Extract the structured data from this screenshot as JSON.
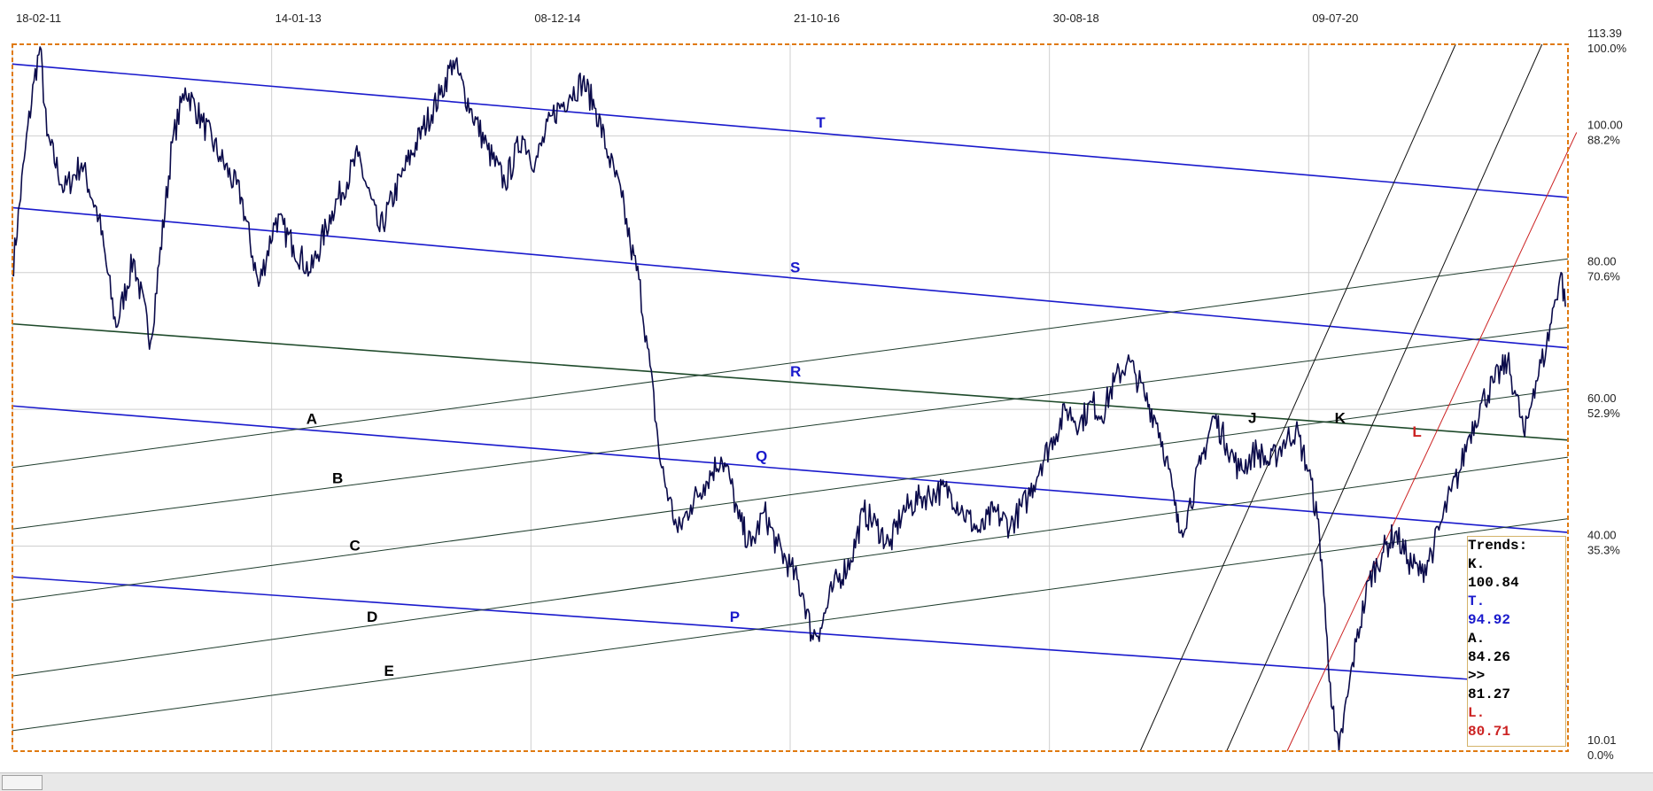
{
  "chart_data": {
    "type": "line",
    "x_ticks": [
      "18-02-11",
      "14-01-13",
      "08-12-14",
      "21-10-16",
      "30-08-18",
      "09-07-20"
    ],
    "y_labels": [
      {
        "value": "113.39",
        "pct": "100.0%"
      },
      {
        "value": "100.00",
        "pct": "88.2%"
      },
      {
        "value": "80.00",
        "pct": "70.6%"
      },
      {
        "value": "60.00",
        "pct": "52.9%"
      },
      {
        "value": "40.00",
        "pct": "35.3%"
      },
      {
        "value": "10.01",
        "pct": "0.0%"
      }
    ],
    "ylim": [
      10.01,
      113.39
    ],
    "price_series": [
      [
        0.0,
        80
      ],
      [
        0.15,
        98
      ],
      [
        0.25,
        108
      ],
      [
        0.32,
        113
      ],
      [
        0.4,
        100
      ],
      [
        0.6,
        92
      ],
      [
        0.8,
        96
      ],
      [
        1.0,
        88
      ],
      [
        1.2,
        72
      ],
      [
        1.4,
        82
      ],
      [
        1.6,
        70
      ],
      [
        1.85,
        99
      ],
      [
        2.0,
        107
      ],
      [
        2.2,
        102
      ],
      [
        2.4,
        97
      ],
      [
        2.65,
        91
      ],
      [
        2.85,
        78
      ],
      [
        3.05,
        88
      ],
      [
        3.25,
        84
      ],
      [
        3.45,
        80
      ],
      [
        3.7,
        89
      ],
      [
        4.0,
        97
      ],
      [
        4.25,
        86
      ],
      [
        4.5,
        94
      ],
      [
        4.75,
        101
      ],
      [
        4.95,
        106
      ],
      [
        5.1,
        111
      ],
      [
        5.3,
        104
      ],
      [
        5.5,
        98
      ],
      [
        5.7,
        93
      ],
      [
        5.9,
        100
      ],
      [
        6.05,
        96
      ],
      [
        6.25,
        103
      ],
      [
        6.45,
        106
      ],
      [
        6.6,
        108
      ],
      [
        6.75,
        104
      ],
      [
        6.9,
        97
      ],
      [
        7.05,
        91
      ],
      [
        7.15,
        84
      ],
      [
        7.25,
        79
      ],
      [
        7.35,
        69
      ],
      [
        7.45,
        58
      ],
      [
        7.5,
        52
      ],
      [
        7.6,
        47
      ],
      [
        7.7,
        42
      ],
      [
        7.85,
        46
      ],
      [
        8.0,
        49
      ],
      [
        8.2,
        53
      ],
      [
        8.3,
        50
      ],
      [
        8.4,
        44
      ],
      [
        8.55,
        40
      ],
      [
        8.7,
        45
      ],
      [
        8.85,
        40
      ],
      [
        9.0,
        37
      ],
      [
        9.15,
        33
      ],
      [
        9.25,
        27
      ],
      [
        9.35,
        28
      ],
      [
        9.5,
        34
      ],
      [
        9.7,
        38
      ],
      [
        9.85,
        45
      ],
      [
        10.0,
        43
      ],
      [
        10.15,
        40
      ],
      [
        10.3,
        45
      ],
      [
        10.5,
        47
      ],
      [
        10.7,
        48
      ],
      [
        10.85,
        48
      ],
      [
        11.0,
        45
      ],
      [
        11.2,
        42
      ],
      [
        11.35,
        45
      ],
      [
        11.55,
        43
      ],
      [
        11.75,
        47
      ],
      [
        11.9,
        52
      ],
      [
        12.05,
        56
      ],
      [
        12.2,
        60
      ],
      [
        12.35,
        58
      ],
      [
        12.5,
        61
      ],
      [
        12.6,
        59
      ],
      [
        12.75,
        64
      ],
      [
        12.9,
        67
      ],
      [
        13.0,
        65
      ],
      [
        13.1,
        62
      ],
      [
        13.25,
        58
      ],
      [
        13.35,
        53
      ],
      [
        13.45,
        46
      ],
      [
        13.5,
        42
      ],
      [
        13.6,
        45
      ],
      [
        13.75,
        52
      ],
      [
        13.9,
        59
      ],
      [
        14.05,
        55
      ],
      [
        14.2,
        51
      ],
      [
        14.4,
        54
      ],
      [
        14.55,
        52
      ],
      [
        14.7,
        55
      ],
      [
        14.85,
        57
      ],
      [
        15.0,
        51
      ],
      [
        15.1,
        44
      ],
      [
        15.15,
        38
      ],
      [
        15.2,
        28
      ],
      [
        15.25,
        20
      ],
      [
        15.3,
        13
      ],
      [
        15.35,
        10.01
      ],
      [
        15.45,
        18
      ],
      [
        15.55,
        26
      ],
      [
        15.7,
        35
      ],
      [
        15.85,
        39
      ],
      [
        16.0,
        42
      ],
      [
        16.15,
        38
      ],
      [
        16.3,
        36
      ],
      [
        16.45,
        40
      ],
      [
        16.55,
        44
      ],
      [
        16.65,
        48
      ],
      [
        16.75,
        51
      ],
      [
        16.85,
        56
      ],
      [
        17.0,
        61
      ],
      [
        17.15,
        64
      ],
      [
        17.3,
        67
      ],
      [
        17.4,
        62
      ],
      [
        17.5,
        56
      ],
      [
        17.6,
        63
      ],
      [
        17.75,
        69
      ],
      [
        17.85,
        76
      ],
      [
        17.92,
        80
      ],
      [
        17.97,
        75
      ]
    ],
    "trend_lines": {
      "blue": [
        {
          "name": "T",
          "y_start": 110.5,
          "y_end": 91.0
        },
        {
          "name": "S",
          "y_start": 89.5,
          "y_end": 69.0
        },
        {
          "name": "R",
          "y_start": 72.5,
          "y_end": 55.5
        },
        {
          "name": "Q",
          "y_start": 60.5,
          "y_end": 42.0
        },
        {
          "name": "P",
          "y_start": 35.5,
          "y_end": 19.5
        }
      ],
      "dark_green": [
        {
          "name": "A",
          "y_start": 51.5,
          "y_end": 82.0
        },
        {
          "name": "B",
          "y_start": 42.5,
          "y_end": 72.0
        },
        {
          "name": "C",
          "y_start": 32.0,
          "y_end": 63.0
        },
        {
          "name": "D",
          "y_start": 21.0,
          "y_end": 53.0
        },
        {
          "name": "E",
          "y_start": 13.0,
          "y_end": 44.0
        }
      ]
    },
    "steep_lines": [
      {
        "name": "J",
        "x1": 13.05,
        "y1": 10.01,
        "x2": 16.7,
        "y2": 113.39
      },
      {
        "name": "K",
        "x1": 14.05,
        "y1": 10.01,
        "x2": 17.7,
        "y2": 113.39
      },
      {
        "name": "L",
        "x1": 14.75,
        "y1": 10.01,
        "x2": 18.1,
        "y2": 100.5
      }
    ],
    "trend_panel": {
      "title": "Trends:",
      "rows": [
        {
          "label": "K.",
          "value": "100.84"
        },
        {
          "label": "T.",
          "value": "94.92"
        },
        {
          "label": "A.",
          "value": "84.26"
        },
        {
          "label": ">>",
          "value": "81.27"
        },
        {
          "label": "L.",
          "value": "80.71"
        }
      ]
    },
    "grid": true,
    "legend_position": "bottom-right"
  },
  "colors": {
    "price": "#0a0a4a",
    "blue_trend": "#1a1acc",
    "green_trend": "#1e3c2c",
    "steep_trend": "#111111",
    "red_trend": "#cc2222",
    "frame": "#e07a10",
    "grid": "#cfcfcf"
  }
}
